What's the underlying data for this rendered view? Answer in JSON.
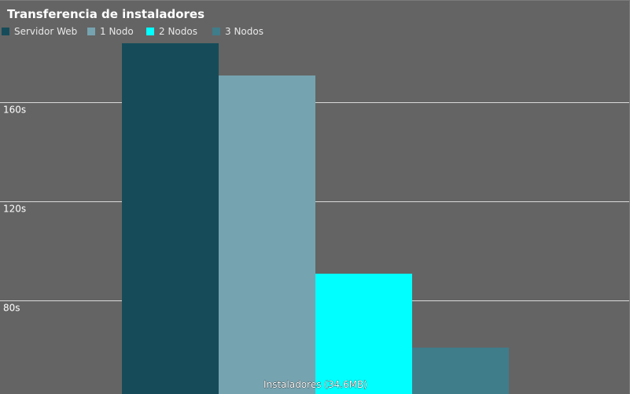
{
  "chart_data": {
    "type": "bar",
    "title": "Transferencia de instaladores",
    "xlabel": "Instaladores (34.6MB)",
    "ylabel": "",
    "categories": [
      "Instaladores (34.6MB)"
    ],
    "series": [
      {
        "name": "Servidor Web",
        "values": [
          184
        ],
        "color": "#164c5a"
      },
      {
        "name": "1 Nodo",
        "values": [
          171
        ],
        "color": "#76a3b0"
      },
      {
        "name": "2 Nodos",
        "values": [
          91
        ],
        "color": "#00ffff"
      },
      {
        "name": "3 Nodos",
        "values": [
          61
        ],
        "color": "#3f7d8b"
      }
    ],
    "yticks": [
      {
        "value": 80,
        "label": "80s"
      },
      {
        "value": 120,
        "label": "120s"
      },
      {
        "value": 160,
        "label": "160s"
      }
    ],
    "ylim": [
      42,
      201
    ],
    "grid": true,
    "legend_position": "top-left"
  }
}
